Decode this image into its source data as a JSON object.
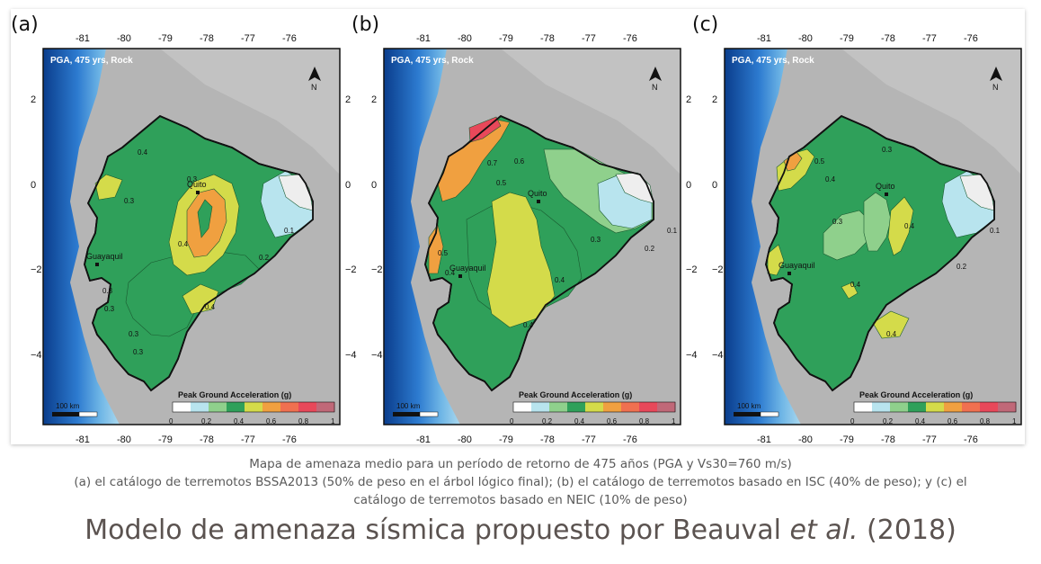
{
  "panels": [
    {
      "letter": "(a)",
      "header": "PGA, 475 yrs, Rock",
      "north": "N",
      "scalebar": "100 km",
      "legend_title": "Peak Ground Acceleration (g)",
      "legend_ticks": [
        "0",
        "0.2",
        "0.4",
        "0.6",
        "0.8",
        "1"
      ],
      "top_lon": [
        "-81",
        "-80",
        "-79",
        "-78",
        "-77",
        "-76"
      ],
      "bottom_lon": [
        "-81",
        "-80",
        "-79",
        "-78",
        "-77",
        "-76"
      ],
      "lat_labels": [
        "2",
        "0",
        "−2",
        "−4"
      ],
      "cities": [
        "Quito",
        "Guayaquil"
      ],
      "contours": [
        "0.4",
        "0.3",
        "0.3",
        "0.3",
        "0.3",
        "0.4",
        "0.2",
        "0.1",
        "0.4",
        "0.3",
        "0.3"
      ]
    },
    {
      "letter": "(b)",
      "header": "PGA, 475 yrs, Rock",
      "north": "N",
      "scalebar": "100 km",
      "legend_title": "Peak Ground Acceleration (g)",
      "legend_ticks": [
        "0",
        "0.2",
        "0.4",
        "0.6",
        "0.8",
        "1"
      ],
      "top_lon": [
        "-81",
        "-80",
        "-79",
        "-78",
        "-77",
        "-76"
      ],
      "bottom_lon": [
        "-81",
        "-80",
        "-79",
        "-78",
        "-77",
        "-76"
      ],
      "lat_labels": [
        "2",
        "0",
        "−2",
        "−4"
      ],
      "cities": [
        "Quito",
        "Guayaquil"
      ],
      "contours": [
        "0.7",
        "0.6",
        "0.5",
        "0.5",
        "0.4",
        "0.3",
        "0.2",
        "0.1",
        "0.4",
        "0.4"
      ]
    },
    {
      "letter": "(c)",
      "header": "PGA, 475 yrs, Rock",
      "north": "N",
      "scalebar": "100 km",
      "legend_title": "Peak Ground Acceleration (g)",
      "legend_ticks": [
        "0",
        "0.2",
        "0.4",
        "0.6",
        "0.8",
        "1"
      ],
      "top_lon": [
        "-81",
        "-80",
        "-79",
        "-78",
        "-77",
        "-76"
      ],
      "bottom_lon": [
        "-81",
        "-80",
        "-79",
        "-78",
        "-77",
        "-76"
      ],
      "lat_labels": [
        "2",
        "0",
        "−2",
        "−4"
      ],
      "cities": [
        "Quito",
        "Guayaquil"
      ],
      "contours": [
        "0.5",
        "0.3",
        "0.4",
        "0.3",
        "0.4",
        "0.2",
        "0.1",
        "0.4",
        "0.4"
      ]
    }
  ],
  "legend_colors": [
    "#ffffff",
    "#b8e4ee",
    "#8fd08c",
    "#2fa05a",
    "#d4db4a",
    "#f0a040",
    "#f07050",
    "#e8485a",
    "#c06878"
  ],
  "colors": {
    "ocean_deep": "#0a3d8c",
    "ocean_mid": "#2d7bd0",
    "ocean_shelf": "#a9d8ee",
    "land_gray": "#b5b5b5"
  },
  "caption": {
    "line1": "Mapa de amenaza medio para un período de retorno de 475 años (PGA y Vs30=760 m/s)",
    "line2": "(a) el catálogo de terremotos BSSA2013 (50% de peso en el árbol lógico final); (b) el catálogo de terremotos basado en ISC (40% de peso); y (c) el",
    "line3": "catálogo de terremotos basado en NEIC (10% de peso)"
  },
  "title": {
    "before": "Modelo de amenaza sísmica propuesto por Beauval ",
    "italic": "et al.",
    "after": " (2018)"
  }
}
